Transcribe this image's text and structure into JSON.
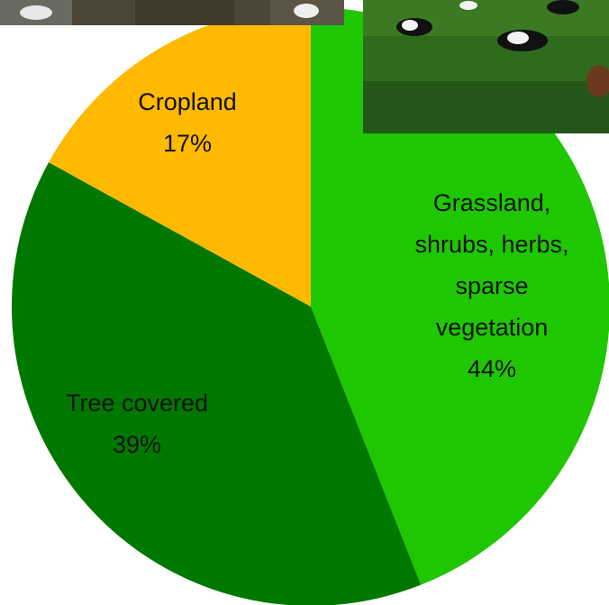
{
  "chart_data": {
    "type": "pie",
    "categories": [
      "Grassland, shrubs, herbs, sparse vegetation",
      "Tree covered",
      "Cropland"
    ],
    "values": [
      44,
      39,
      17
    ],
    "value_labels": [
      "44%",
      "39%",
      "17%"
    ],
    "colors": [
      "#1ec700",
      "#007800",
      "#ffb900"
    ]
  }
}
